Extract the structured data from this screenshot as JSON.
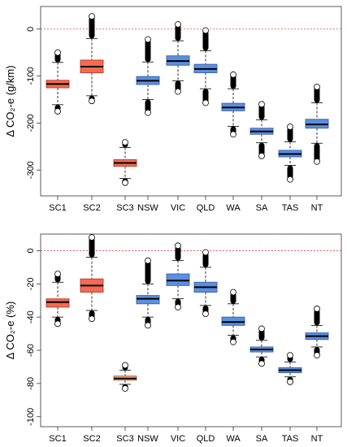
{
  "colors": {
    "red_fill": "#f26b52",
    "red_stroke": "#c0392b",
    "blue_fill": "#5b8fe0",
    "blue_stroke": "#3a5fa8",
    "orange_fill": "#f0a36a",
    "refline": "#e64b4b",
    "axis": "#333333"
  },
  "chart_data": [
    {
      "type": "box",
      "ylabel": "Δ CO₂-e (g/km)",
      "ylim": [
        -355,
        48
      ],
      "yticks": [
        0,
        -100,
        -200,
        -300
      ],
      "refline": 0,
      "categories": [
        "SC1",
        "SC2",
        "SC3",
        "NSW",
        "VIC",
        "QLD",
        "WA",
        "SA",
        "TAS",
        "NT"
      ],
      "fill_group": [
        "red",
        "red",
        "red",
        "blue",
        "blue",
        "blue",
        "blue",
        "blue",
        "blue",
        "blue"
      ],
      "boxes": [
        {
          "median": -117,
          "q1": -125,
          "q3": -109,
          "whisker_low": -161,
          "whisker_high": -71,
          "outlier_low": -175,
          "outlier_high": -50
        },
        {
          "median": -80,
          "q1": -93,
          "q3": -66,
          "whisker_low": -142,
          "whisker_high": -20,
          "outlier_low": -153,
          "outlier_high": 27
        },
        {
          "median": -285,
          "q1": -292,
          "q3": -278,
          "whisker_low": -318,
          "whisker_high": -252,
          "outlier_low": -327,
          "outlier_high": -241
        },
        {
          "median": -110,
          "q1": -118,
          "q3": -101,
          "whisker_low": -150,
          "whisker_high": -70,
          "outlier_low": -178,
          "outlier_high": -22
        },
        {
          "median": -68,
          "q1": -77,
          "q3": -57,
          "whisker_low": -110,
          "whisker_high": -25,
          "outlier_low": -133,
          "outlier_high": 10
        },
        {
          "median": -85,
          "q1": -93,
          "q3": -75,
          "whisker_low": -127,
          "whisker_high": -46,
          "outlier_low": -157,
          "outlier_high": -3
        },
        {
          "median": -167,
          "q1": -174,
          "q3": -158,
          "whisker_low": -207,
          "whisker_high": -127,
          "outlier_low": -224,
          "outlier_high": -97
        },
        {
          "median": -218,
          "q1": -224,
          "q3": -211,
          "whisker_low": -242,
          "whisker_high": -193,
          "outlier_low": -270,
          "outlier_high": -160
        },
        {
          "median": -266,
          "q1": -272,
          "q3": -258,
          "whisker_low": -290,
          "whisker_high": -240,
          "outlier_low": -320,
          "outlier_high": -208
        },
        {
          "median": -203,
          "q1": -211,
          "q3": -192,
          "whisker_low": -243,
          "whisker_high": -157,
          "outlier_low": -282,
          "outlier_high": -123
        }
      ]
    },
    {
      "type": "box",
      "ylabel": "Δ CO₂-e (%)",
      "ylim": [
        -106,
        10
      ],
      "yticks": [
        0,
        -20,
        -40,
        -60,
        -80,
        -100
      ],
      "refline": 0,
      "categories": [
        "SC1",
        "SC2",
        "SC3",
        "NSW",
        "VIC",
        "QLD",
        "WA",
        "SA",
        "TAS",
        "NT"
      ],
      "fill_group": [
        "red",
        "red",
        "orange",
        "blue",
        "blue",
        "blue",
        "blue",
        "blue",
        "blue",
        "blue"
      ],
      "boxes": [
        {
          "median": -31,
          "q1": -34,
          "q3": -29,
          "whisker_low": -40,
          "whisker_high": -19,
          "outlier_low": -44,
          "outlier_high": -14
        },
        {
          "median": -21,
          "q1": -25,
          "q3": -17,
          "whisker_low": -36,
          "whisker_high": -4,
          "outlier_low": -41,
          "outlier_high": 8
        },
        {
          "median": -77,
          "q1": -78,
          "q3": -75.5,
          "whisker_low": -80.5,
          "whisker_high": -72,
          "outlier_low": -83,
          "outlier_high": -69
        },
        {
          "median": -29,
          "q1": -32,
          "q3": -27,
          "whisker_low": -40,
          "whisker_high": -20,
          "outlier_low": -45,
          "outlier_high": -6
        },
        {
          "median": -18,
          "q1": -21,
          "q3": -14,
          "whisker_low": -29,
          "whisker_high": -6,
          "outlier_low": -34,
          "outlier_high": 3
        },
        {
          "median": -22,
          "q1": -25,
          "q3": -19,
          "whisker_low": -33,
          "whisker_high": -10,
          "outlier_low": -38,
          "outlier_high": -1
        },
        {
          "median": -43,
          "q1": -45,
          "q3": -40,
          "whisker_low": -51,
          "whisker_high": -32,
          "outlier_low": -55,
          "outlier_high": -25
        },
        {
          "median": -59.5,
          "q1": -61,
          "q3": -58,
          "whisker_low": -64,
          "whisker_high": -54,
          "outlier_low": -68,
          "outlier_high": -47
        },
        {
          "median": -72,
          "q1": -73.5,
          "q3": -70.5,
          "whisker_low": -76,
          "whisker_high": -67,
          "outlier_low": -79,
          "outlier_high": -63
        },
        {
          "median": -51.5,
          "q1": -53.5,
          "q3": -49.5,
          "whisker_low": -58,
          "whisker_high": -45,
          "outlier_low": -63,
          "outlier_high": -35
        }
      ]
    }
  ]
}
